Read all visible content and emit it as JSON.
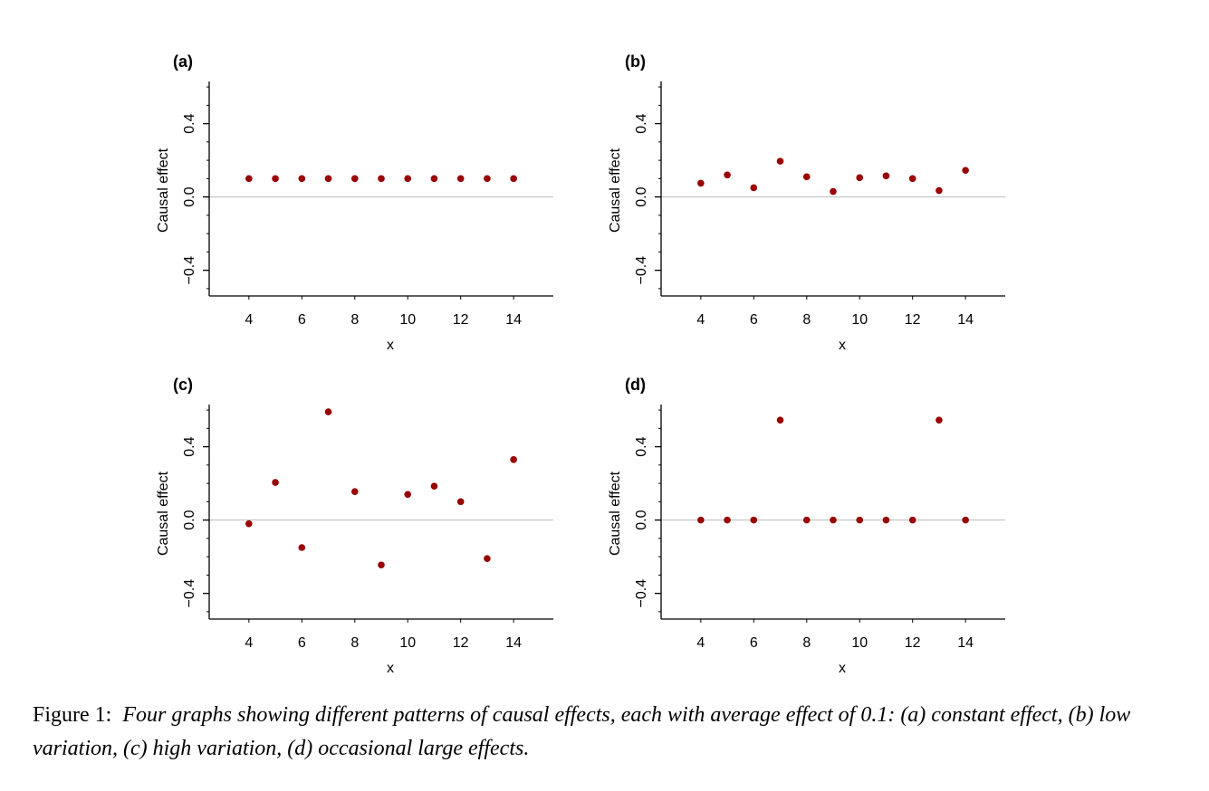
{
  "colors": {
    "point": "#990000",
    "zero_line": "#bbbbbb",
    "axis": "#000000"
  },
  "caption": {
    "prefix": "Figure 1:",
    "text": "Four graphs showing different patterns of causal effects, each with average effect of 0.1: (a) constant effect, (b) low variation, (c) high variation, (d) occasional large effects."
  },
  "chart_data": [
    {
      "type": "scatter",
      "title": "(a)",
      "xlabel": "x",
      "ylabel": "Causal effect",
      "x": [
        4,
        5,
        6,
        7,
        8,
        9,
        10,
        11,
        12,
        13,
        14
      ],
      "y": [
        0.1,
        0.1,
        0.1,
        0.1,
        0.1,
        0.1,
        0.1,
        0.1,
        0.1,
        0.1,
        0.1
      ],
      "xlim": [
        2.5,
        15.5
      ],
      "ylim": [
        -0.54,
        0.63
      ],
      "xticks": [
        4,
        6,
        8,
        10,
        12,
        14
      ],
      "yticks": [
        -0.4,
        0.0,
        0.4
      ],
      "ytick_labels": [
        "−0.4",
        "0.0",
        "0.4"
      ],
      "hline": 0
    },
    {
      "type": "scatter",
      "title": "(b)",
      "xlabel": "x",
      "ylabel": "Causal effect",
      "x": [
        4,
        5,
        6,
        7,
        8,
        9,
        10,
        11,
        12,
        13,
        14
      ],
      "y": [
        0.075,
        0.12,
        0.05,
        0.195,
        0.11,
        0.03,
        0.105,
        0.115,
        0.1,
        0.035,
        0.145
      ],
      "xlim": [
        2.5,
        15.5
      ],
      "ylim": [
        -0.54,
        0.63
      ],
      "xticks": [
        4,
        6,
        8,
        10,
        12,
        14
      ],
      "yticks": [
        -0.4,
        0.0,
        0.4
      ],
      "ytick_labels": [
        "−0.4",
        "0.0",
        "0.4"
      ],
      "hline": 0
    },
    {
      "type": "scatter",
      "title": "(c)",
      "xlabel": "x",
      "ylabel": "Causal effect",
      "x": [
        4,
        5,
        6,
        7,
        8,
        9,
        10,
        11,
        12,
        13,
        14
      ],
      "y": [
        -0.02,
        0.205,
        -0.15,
        0.59,
        0.155,
        -0.245,
        0.14,
        0.185,
        0.1,
        -0.21,
        0.33
      ],
      "xlim": [
        2.5,
        15.5
      ],
      "ylim": [
        -0.54,
        0.63
      ],
      "xticks": [
        4,
        6,
        8,
        10,
        12,
        14
      ],
      "yticks": [
        -0.4,
        0.0,
        0.4
      ],
      "ytick_labels": [
        "−0.4",
        "0.0",
        "0.4"
      ],
      "hline": 0
    },
    {
      "type": "scatter",
      "title": "(d)",
      "xlabel": "x",
      "ylabel": "Causal effect",
      "x": [
        4,
        5,
        6,
        7,
        8,
        9,
        10,
        11,
        12,
        13,
        14
      ],
      "y": [
        0,
        0,
        0,
        0.545,
        0,
        0,
        0,
        0,
        0,
        0.545,
        0
      ],
      "xlim": [
        2.5,
        15.5
      ],
      "ylim": [
        -0.54,
        0.63
      ],
      "xticks": [
        4,
        6,
        8,
        10,
        12,
        14
      ],
      "yticks": [
        -0.4,
        0.0,
        0.4
      ],
      "ytick_labels": [
        "−0.4",
        "0.0",
        "0.4"
      ],
      "hline": 0
    }
  ]
}
